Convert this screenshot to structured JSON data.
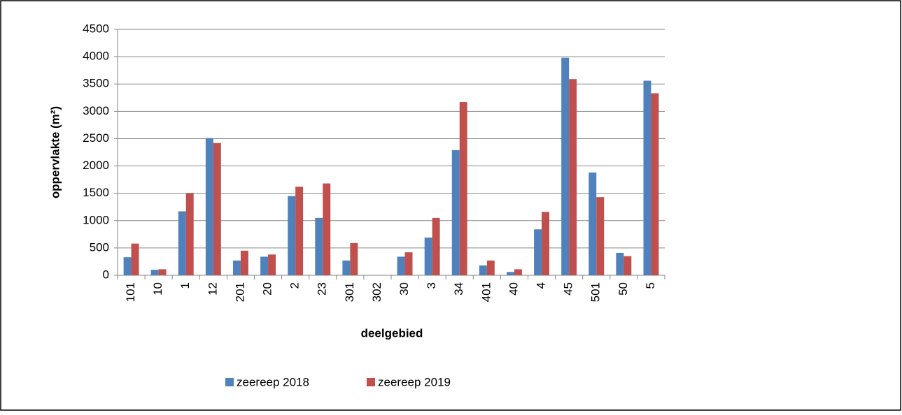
{
  "chart_data": {
    "type": "bar",
    "x_label": "deelgebied",
    "y_label": "oppervlakte (m²)",
    "categories": [
      "101",
      "10",
      "1",
      "12",
      "201",
      "20",
      "2",
      "23",
      "301",
      "302",
      "30",
      "3",
      "34",
      "401",
      "40",
      "4",
      "45",
      "501",
      "50",
      "5"
    ],
    "series": [
      {
        "name": "zeereep 2018",
        "color": "#4f81bd",
        "values": [
          330,
          100,
          1170,
          2510,
          270,
          340,
          1450,
          1050,
          270,
          0,
          340,
          690,
          2290,
          180,
          60,
          840,
          3980,
          1880,
          410,
          3560
        ]
      },
      {
        "name": "zeereep 2019",
        "color": "#c0504d",
        "values": [
          580,
          110,
          1500,
          2420,
          450,
          380,
          1620,
          1680,
          590,
          0,
          420,
          1050,
          3170,
          270,
          110,
          1160,
          3590,
          1430,
          350,
          3330
        ]
      }
    ],
    "ylim": [
      0,
      4500
    ],
    "yticks": [
      0,
      500,
      1000,
      1500,
      2000,
      2500,
      3000,
      3500,
      4000,
      4500
    ],
    "grid": true,
    "legend": "bottom"
  }
}
